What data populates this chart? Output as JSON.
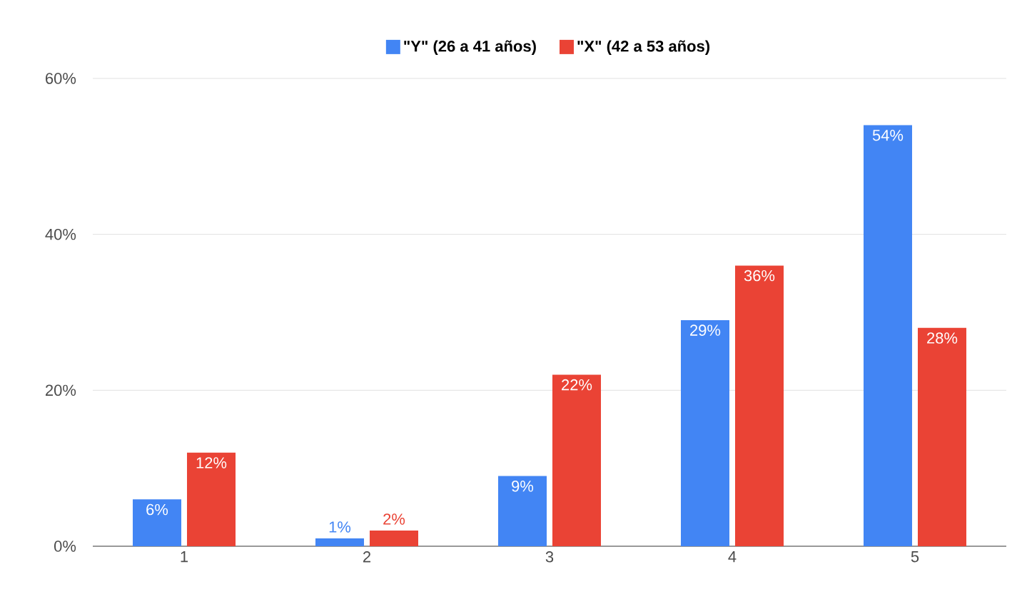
{
  "chart_data": {
    "type": "bar",
    "categories": [
      "1",
      "2",
      "3",
      "4",
      "5"
    ],
    "series": [
      {
        "name": "\"Y\" (26 a 41 años)",
        "color": "#4285f4",
        "values": [
          6,
          1,
          9,
          29,
          54
        ],
        "value_labels": [
          "6%",
          "1%",
          "9%",
          "29%",
          "54%"
        ]
      },
      {
        "name": "\"X\" (42 a 53 años)",
        "color": "#ea4335",
        "values": [
          12,
          2,
          22,
          36,
          28
        ],
        "value_labels": [
          "12%",
          "2%",
          "22%",
          "36%",
          "28%"
        ]
      }
    ],
    "ylim": [
      0,
      60
    ],
    "yticks": [
      {
        "value": 0,
        "label": "0%"
      },
      {
        "value": 20,
        "label": "20%"
      },
      {
        "value": 40,
        "label": "40%"
      },
      {
        "value": 60,
        "label": "60%"
      }
    ],
    "grid": "y",
    "legend": "top"
  }
}
